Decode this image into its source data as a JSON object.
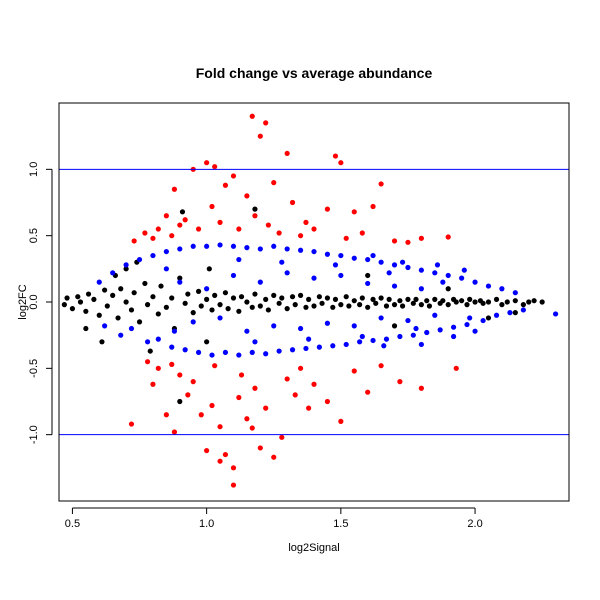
{
  "chart_data": {
    "type": "scatter",
    "title": "Fold change vs average abundance",
    "xlabel": "log2Signal",
    "ylabel": "log2FC",
    "xlim": [
      0.45,
      2.35
    ],
    "ylim": [
      -1.5,
      1.5
    ],
    "x_ticks": [
      0.5,
      1.0,
      1.5,
      2.0
    ],
    "x_tick_labels": [
      "0.5",
      "1.0",
      "1.5",
      "2.0"
    ],
    "y_ticks": [
      -1.0,
      -0.5,
      0.0,
      0.5,
      1.0
    ],
    "y_tick_labels": [
      "-1.0",
      "-0.5",
      "0.0",
      "0.5",
      "1.0"
    ],
    "grid": false,
    "legend": "none",
    "reference_lines": [
      {
        "y": 1.0,
        "color": "#0000ff"
      },
      {
        "y": -1.0,
        "color": "#0000ff"
      }
    ],
    "series": [
      {
        "color": "#000000",
        "points": [
          [
            0.47,
            -0.02
          ],
          [
            0.48,
            0.03
          ],
          [
            0.5,
            -0.05
          ],
          [
            0.52,
            0.04
          ],
          [
            0.53,
            0.0
          ],
          [
            0.55,
            -0.07
          ],
          [
            0.56,
            0.06
          ],
          [
            0.58,
            0.02
          ],
          [
            0.6,
            -0.1
          ],
          [
            0.62,
            0.09
          ],
          [
            0.63,
            -0.03
          ],
          [
            0.65,
            0.05
          ],
          [
            0.67,
            -0.12
          ],
          [
            0.68,
            0.1
          ],
          [
            0.7,
            0.0
          ],
          [
            0.72,
            -0.06
          ],
          [
            0.73,
            0.07
          ],
          [
            0.75,
            -0.15
          ],
          [
            0.77,
            0.14
          ],
          [
            0.78,
            -0.02
          ],
          [
            0.8,
            0.04
          ],
          [
            0.82,
            -0.09
          ],
          [
            0.83,
            0.12
          ],
          [
            0.85,
            -0.04
          ],
          [
            0.87,
            0.03
          ],
          [
            0.88,
            -0.2
          ],
          [
            0.9,
            0.18
          ],
          [
            0.92,
            -0.01
          ],
          [
            0.93,
            0.06
          ],
          [
            0.95,
            -0.08
          ],
          [
            0.97,
            0.08
          ],
          [
            0.98,
            -0.03
          ],
          [
            1.0,
            0.02
          ],
          [
            1.02,
            -0.06
          ],
          [
            1.03,
            0.05
          ],
          [
            1.05,
            -0.02
          ],
          [
            1.07,
            0.07
          ],
          [
            1.08,
            -0.05
          ],
          [
            1.1,
            0.03
          ],
          [
            1.12,
            -0.07
          ],
          [
            1.13,
            0.04
          ],
          [
            1.15,
            0.0
          ],
          [
            1.17,
            -0.04
          ],
          [
            1.18,
            0.06
          ],
          [
            1.2,
            -0.03
          ],
          [
            1.22,
            0.02
          ],
          [
            1.23,
            -0.06
          ],
          [
            1.25,
            0.05
          ],
          [
            1.27,
            -0.01
          ],
          [
            1.28,
            0.03
          ],
          [
            1.3,
            -0.05
          ],
          [
            1.32,
            0.04
          ],
          [
            1.33,
            -0.02
          ],
          [
            1.35,
            0.05
          ],
          [
            1.37,
            -0.04
          ],
          [
            1.38,
            0.02
          ],
          [
            1.4,
            -0.03
          ],
          [
            1.42,
            0.04
          ],
          [
            1.43,
            -0.01
          ],
          [
            1.45,
            0.03
          ],
          [
            1.47,
            -0.04
          ],
          [
            1.48,
            0.02
          ],
          [
            1.5,
            -0.02
          ],
          [
            1.52,
            0.04
          ],
          [
            1.53,
            -0.03
          ],
          [
            1.55,
            0.01
          ],
          [
            1.57,
            -0.02
          ],
          [
            1.58,
            0.03
          ],
          [
            1.6,
            -0.04
          ],
          [
            1.62,
            0.02
          ],
          [
            1.63,
            -0.01
          ],
          [
            1.65,
            0.03
          ],
          [
            1.67,
            -0.03
          ],
          [
            1.68,
            0.02
          ],
          [
            1.7,
            -0.02
          ],
          [
            1.72,
            0.01
          ],
          [
            1.73,
            -0.03
          ],
          [
            1.75,
            0.02
          ],
          [
            1.77,
            -0.01
          ],
          [
            1.78,
            0.02
          ],
          [
            1.8,
            -0.02
          ],
          [
            1.82,
            0.01
          ],
          [
            1.83,
            -0.03
          ],
          [
            1.85,
            0.02
          ],
          [
            1.87,
            -0.01
          ],
          [
            1.88,
            0.01
          ],
          [
            1.9,
            -0.02
          ],
          [
            1.92,
            0.02
          ],
          [
            1.93,
            0.0
          ],
          [
            1.95,
            0.01
          ],
          [
            1.97,
            -0.02
          ],
          [
            1.98,
            0.02
          ],
          [
            2.0,
            0.0
          ],
          [
            2.02,
            0.01
          ],
          [
            2.03,
            -0.01
          ],
          [
            2.05,
            0.0
          ],
          [
            2.08,
            0.02
          ],
          [
            2.1,
            -0.02
          ],
          [
            2.12,
            0.0
          ],
          [
            2.15,
            0.01
          ],
          [
            2.18,
            -0.02
          ],
          [
            2.2,
            0.0
          ],
          [
            2.22,
            0.01
          ],
          [
            2.25,
            0.0
          ],
          [
            0.79,
            -0.37
          ],
          [
            0.9,
            -0.75
          ],
          [
            0.91,
            0.68
          ],
          [
            1.18,
            0.7
          ],
          [
            0.74,
            0.3
          ],
          [
            0.66,
            0.2
          ],
          [
            0.55,
            -0.2
          ],
          [
            0.61,
            -0.3
          ],
          [
            0.7,
            0.25
          ],
          [
            1.0,
            -0.3
          ],
          [
            1.01,
            0.25
          ],
          [
            1.6,
            0.2
          ],
          [
            1.7,
            -0.18
          ],
          [
            1.9,
            0.1
          ],
          [
            2.05,
            -0.12
          ],
          [
            2.15,
            -0.08
          ]
        ]
      },
      {
        "color": "#0000ff",
        "points": [
          [
            0.6,
            0.15
          ],
          [
            0.62,
            -0.18
          ],
          [
            0.65,
            0.22
          ],
          [
            0.68,
            -0.25
          ],
          [
            0.7,
            0.28
          ],
          [
            0.72,
            -0.2
          ],
          [
            0.75,
            0.32
          ],
          [
            0.78,
            -0.3
          ],
          [
            0.8,
            0.35
          ],
          [
            0.82,
            -0.28
          ],
          [
            0.85,
            0.38
          ],
          [
            0.87,
            -0.34
          ],
          [
            0.9,
            0.4
          ],
          [
            0.92,
            -0.36
          ],
          [
            0.95,
            0.42
          ],
          [
            0.97,
            -0.38
          ],
          [
            1.0,
            0.42
          ],
          [
            1.02,
            -0.4
          ],
          [
            1.05,
            0.43
          ],
          [
            1.07,
            -0.38
          ],
          [
            1.1,
            0.42
          ],
          [
            1.12,
            -0.4
          ],
          [
            1.15,
            0.41
          ],
          [
            1.17,
            -0.38
          ],
          [
            1.2,
            0.4
          ],
          [
            1.22,
            -0.39
          ],
          [
            1.25,
            0.42
          ],
          [
            1.27,
            -0.37
          ],
          [
            1.3,
            0.4
          ],
          [
            1.32,
            -0.36
          ],
          [
            1.35,
            0.39
          ],
          [
            1.37,
            -0.35
          ],
          [
            1.4,
            0.38
          ],
          [
            1.42,
            -0.34
          ],
          [
            1.45,
            0.36
          ],
          [
            1.47,
            -0.33
          ],
          [
            1.5,
            0.35
          ],
          [
            1.52,
            -0.32
          ],
          [
            1.55,
            0.33
          ],
          [
            1.57,
            -0.3
          ],
          [
            1.6,
            0.32
          ],
          [
            1.62,
            -0.29
          ],
          [
            1.65,
            0.3
          ],
          [
            1.67,
            -0.28
          ],
          [
            1.7,
            0.28
          ],
          [
            1.72,
            -0.26
          ],
          [
            1.75,
            0.26
          ],
          [
            1.77,
            -0.25
          ],
          [
            1.8,
            0.24
          ],
          [
            1.82,
            -0.23
          ],
          [
            1.85,
            0.22
          ],
          [
            1.87,
            -0.21
          ],
          [
            1.9,
            0.2
          ],
          [
            1.92,
            -0.19
          ],
          [
            1.95,
            0.18
          ],
          [
            1.97,
            -0.17
          ],
          [
            2.0,
            0.15
          ],
          [
            2.03,
            -0.14
          ],
          [
            2.05,
            0.12
          ],
          [
            2.08,
            -0.1
          ],
          [
            2.1,
            0.1
          ],
          [
            2.13,
            -0.08
          ],
          [
            2.15,
            0.07
          ],
          [
            2.18,
            -0.06
          ],
          [
            2.3,
            -0.09
          ],
          [
            0.9,
            0.15
          ],
          [
            0.95,
            -0.15
          ],
          [
            1.0,
            0.1
          ],
          [
            1.05,
            -0.12
          ],
          [
            1.1,
            0.2
          ],
          [
            1.15,
            -0.22
          ],
          [
            1.2,
            0.15
          ],
          [
            1.25,
            -0.18
          ],
          [
            1.3,
            0.22
          ],
          [
            1.35,
            -0.2
          ],
          [
            1.4,
            0.18
          ],
          [
            1.45,
            -0.16
          ],
          [
            1.5,
            0.2
          ],
          [
            1.55,
            -0.18
          ],
          [
            1.6,
            0.14
          ],
          [
            1.65,
            -0.12
          ],
          [
            1.7,
            0.12
          ],
          [
            1.75,
            -0.14
          ],
          [
            1.8,
            0.1
          ],
          [
            1.85,
            -0.1
          ],
          [
            0.85,
            0.25
          ],
          [
            0.88,
            -0.22
          ],
          [
            1.12,
            0.32
          ],
          [
            1.18,
            -0.3
          ],
          [
            1.28,
            0.3
          ],
          [
            1.38,
            -0.28
          ],
          [
            1.48,
            0.28
          ],
          [
            1.58,
            -0.26
          ],
          [
            1.68,
            0.22
          ],
          [
            1.78,
            -0.2
          ],
          [
            1.88,
            0.15
          ],
          [
            1.98,
            -0.12
          ],
          [
            1.62,
            0.35
          ],
          [
            1.66,
            -0.33
          ],
          [
            1.73,
            0.3
          ],
          [
            1.8,
            -0.32
          ],
          [
            1.86,
            0.28
          ],
          [
            1.92,
            -0.26
          ],
          [
            1.96,
            0.24
          ],
          [
            2.0,
            -0.22
          ]
        ]
      },
      {
        "color": "#ff0000",
        "points": [
          [
            0.73,
            0.46
          ],
          [
            0.77,
            0.52
          ],
          [
            0.8,
            0.48
          ],
          [
            0.82,
            0.55
          ],
          [
            0.85,
            0.65
          ],
          [
            0.87,
            0.5
          ],
          [
            0.88,
            0.85
          ],
          [
            0.9,
            0.58
          ],
          [
            0.92,
            0.62
          ],
          [
            0.95,
            1.0
          ],
          [
            0.97,
            0.55
          ],
          [
            1.0,
            1.05
          ],
          [
            1.02,
            0.72
          ],
          [
            1.03,
            1.02
          ],
          [
            1.05,
            0.6
          ],
          [
            1.07,
            0.88
          ],
          [
            1.1,
            0.95
          ],
          [
            1.12,
            0.55
          ],
          [
            1.15,
            0.8
          ],
          [
            1.17,
            1.4
          ],
          [
            1.18,
            0.65
          ],
          [
            1.2,
            1.25
          ],
          [
            1.22,
            1.35
          ],
          [
            1.23,
            0.58
          ],
          [
            1.25,
            0.9
          ],
          [
            1.27,
            0.52
          ],
          [
            1.3,
            1.12
          ],
          [
            1.32,
            0.75
          ],
          [
            1.35,
            0.5
          ],
          [
            1.37,
            0.6
          ],
          [
            1.4,
            0.55
          ],
          [
            1.45,
            0.7
          ],
          [
            1.48,
            1.1
          ],
          [
            1.5,
            1.05
          ],
          [
            1.52,
            0.48
          ],
          [
            1.55,
            0.68
          ],
          [
            1.58,
            0.52
          ],
          [
            1.62,
            0.72
          ],
          [
            1.65,
            0.89
          ],
          [
            1.7,
            0.46
          ],
          [
            1.75,
            0.45
          ],
          [
            1.8,
            0.48
          ],
          [
            1.9,
            0.49
          ],
          [
            0.72,
            -0.92
          ],
          [
            0.78,
            -0.45
          ],
          [
            0.8,
            -0.62
          ],
          [
            0.82,
            -0.5
          ],
          [
            0.85,
            -0.85
          ],
          [
            0.88,
            -0.98
          ],
          [
            0.9,
            -0.55
          ],
          [
            0.93,
            -0.7
          ],
          [
            0.95,
            -0.6
          ],
          [
            0.98,
            -0.85
          ],
          [
            1.0,
            -1.12
          ],
          [
            1.02,
            -0.78
          ],
          [
            1.03,
            -0.48
          ],
          [
            1.05,
            -0.94
          ],
          [
            1.07,
            -1.15
          ],
          [
            1.1,
            -1.25
          ],
          [
            1.12,
            -0.72
          ],
          [
            1.13,
            -0.55
          ],
          [
            1.15,
            -0.88
          ],
          [
            1.17,
            -0.95
          ],
          [
            1.18,
            -0.65
          ],
          [
            1.2,
            -1.1
          ],
          [
            1.22,
            -0.8
          ],
          [
            1.25,
            -1.17
          ],
          [
            1.28,
            -1.02
          ],
          [
            1.3,
            -0.58
          ],
          [
            1.33,
            -0.7
          ],
          [
            1.35,
            -0.5
          ],
          [
            1.4,
            -0.62
          ],
          [
            1.45,
            -0.75
          ],
          [
            1.5,
            -0.9
          ],
          [
            1.55,
            -0.52
          ],
          [
            1.6,
            -0.68
          ],
          [
            1.65,
            -0.48
          ],
          [
            1.72,
            -0.6
          ],
          [
            1.8,
            -0.65
          ],
          [
            1.93,
            -0.5
          ],
          [
            1.1,
            -1.38
          ],
          [
            1.05,
            -1.2
          ],
          [
            0.87,
            -0.47
          ],
          [
            1.38,
            -0.8
          ]
        ]
      }
    ]
  }
}
